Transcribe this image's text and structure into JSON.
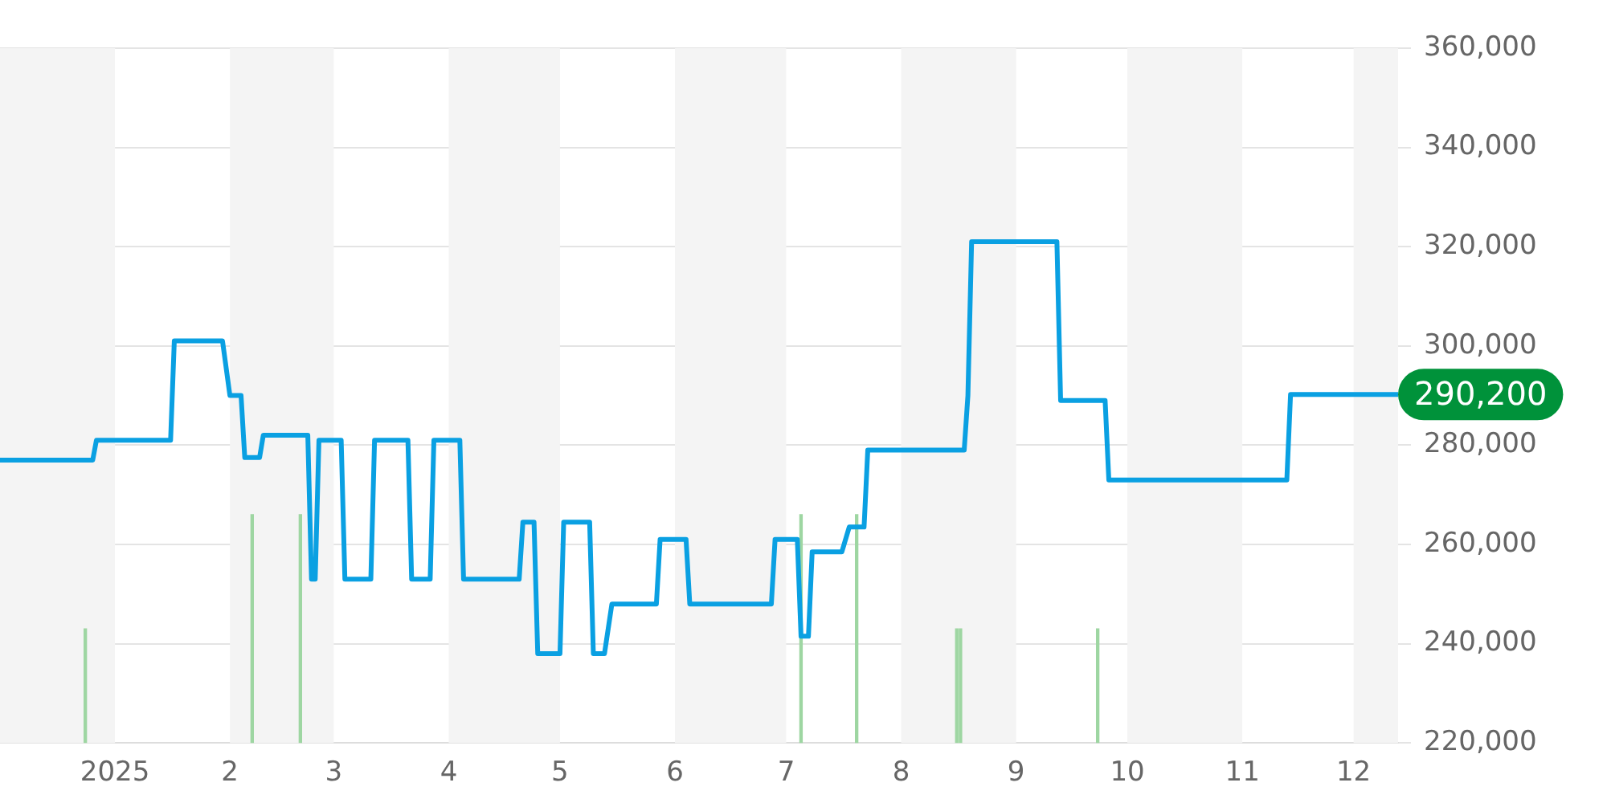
{
  "chart_data": {
    "type": "line",
    "x": [
      "2024-12-01",
      "2024-12-26",
      "2024-12-27",
      "2025-01-16",
      "2025-01-17",
      "2025-01-30",
      "2025-02-01",
      "2025-02-04",
      "2025-02-05",
      "2025-02-09",
      "2025-02-10",
      "2025-02-22",
      "2025-02-23",
      "2025-02-24",
      "2025-02-25",
      "2025-03-03",
      "2025-03-04",
      "2025-03-11",
      "2025-03-12",
      "2025-03-21",
      "2025-03-22",
      "2025-03-27",
      "2025-03-28",
      "2025-04-04",
      "2025-04-05",
      "2025-04-20",
      "2025-04-21",
      "2025-04-24",
      "2025-04-25",
      "2025-05-01",
      "2025-05-02",
      "2025-05-09",
      "2025-05-10",
      "2025-05-13",
      "2025-05-15",
      "2025-05-27",
      "2025-05-28",
      "2025-06-04",
      "2025-06-05",
      "2025-06-27",
      "2025-06-28",
      "2025-07-04",
      "2025-07-05",
      "2025-07-07",
      "2025-07-08",
      "2025-07-16",
      "2025-07-18",
      "2025-07-22",
      "2025-07-23",
      "2025-08-18",
      "2025-08-19",
      "2025-08-20",
      "2025-09-12",
      "2025-09-13",
      "2025-09-25",
      "2025-09-26",
      "2025-11-13",
      "2025-11-14",
      "2025-12-13"
    ],
    "series": [
      {
        "color": "#0aa0e2",
        "values": [
          277000,
          277000,
          281000,
          281000,
          301000,
          301000,
          290000,
          290000,
          277500,
          277500,
          282000,
          282000,
          253000,
          253000,
          281000,
          281000,
          253000,
          253000,
          281000,
          281000,
          253000,
          253000,
          281000,
          281000,
          253000,
          253000,
          264500,
          264500,
          238000,
          238000,
          264500,
          264500,
          238000,
          238000,
          248000,
          248000,
          261000,
          261000,
          248000,
          248000,
          261000,
          261000,
          241500,
          241500,
          258500,
          258500,
          263500,
          263500,
          279000,
          279000,
          290000,
          321000,
          321000,
          289000,
          289000,
          273000,
          273000,
          290200,
          290200
        ]
      },
      {
        "type": "bar",
        "color": "#9ed6a2",
        "x": [
          "2024-12-24",
          "2025-02-07",
          "2025-02-20",
          "2025-07-05",
          "2025-07-20",
          "2025-08-16",
          "2025-08-17",
          "2025-09-23"
        ],
        "values": [
          243000,
          266000,
          266000,
          266000,
          266000,
          243000,
          243000,
          243000
        ]
      }
    ],
    "xlim": [
      "2024-12-01",
      "2025-12-13"
    ],
    "xticks": [
      {
        "value": "2025-01-01",
        "label": "2025"
      },
      {
        "value": "2025-02-01",
        "label": "2"
      },
      {
        "value": "2025-03-01",
        "label": "3"
      },
      {
        "value": "2025-04-01",
        "label": "4"
      },
      {
        "value": "2025-05-01",
        "label": "5"
      },
      {
        "value": "2025-06-01",
        "label": "6"
      },
      {
        "value": "2025-07-01",
        "label": "7"
      },
      {
        "value": "2025-08-01",
        "label": "8"
      },
      {
        "value": "2025-09-01",
        "label": "9"
      },
      {
        "value": "2025-10-01",
        "label": "10"
      },
      {
        "value": "2025-11-01",
        "label": "11"
      },
      {
        "value": "2025-12-01",
        "label": "12"
      }
    ],
    "ylim": [
      220000,
      360000
    ],
    "yticks": [
      {
        "value": 220000,
        "label": "220,000"
      },
      {
        "value": 240000,
        "label": "240,000"
      },
      {
        "value": 260000,
        "label": "260,000"
      },
      {
        "value": 280000,
        "label": "280,000"
      },
      {
        "value": 300000,
        "label": "300,000"
      },
      {
        "value": 320000,
        "label": "320,000"
      },
      {
        "value": 340000,
        "label": "340,000"
      },
      {
        "value": 360000,
        "label": "360,000"
      }
    ],
    "bands": [
      {
        "axis": "x",
        "from": "2024-12-01",
        "to": "2025-01-01",
        "color": "#f4f4f4"
      },
      {
        "axis": "x",
        "from": "2025-02-01",
        "to": "2025-03-01",
        "color": "#f4f4f4"
      },
      {
        "axis": "x",
        "from": "2025-04-01",
        "to": "2025-05-01",
        "color": "#f4f4f4"
      },
      {
        "axis": "x",
        "from": "2025-06-01",
        "to": "2025-07-01",
        "color": "#f4f4f4"
      },
      {
        "axis": "x",
        "from": "2025-08-01",
        "to": "2025-09-01",
        "color": "#f4f4f4"
      },
      {
        "axis": "x",
        "from": "2025-10-01",
        "to": "2025-11-01",
        "color": "#f4f4f4"
      },
      {
        "axis": "x",
        "from": "2025-12-01",
        "to": "2025-12-13",
        "color": "#f4f4f4"
      }
    ],
    "annotations": [
      {
        "text": "290,200",
        "x": "2025-12-13",
        "y": 290200
      }
    ],
    "grid": "y",
    "legend": false,
    "marker": "none",
    "line_style": "solid"
  }
}
